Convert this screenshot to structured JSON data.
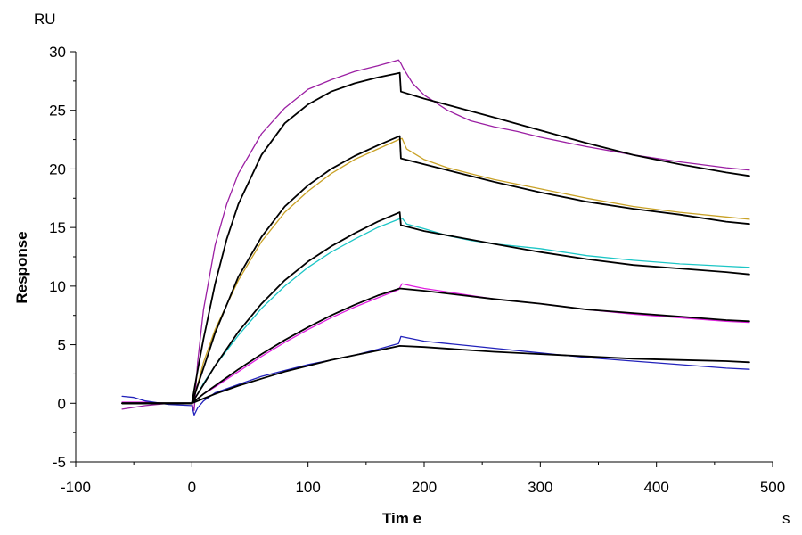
{
  "chart_data": {
    "type": "line",
    "xlabel": "Tim e",
    "ylabel": "Response",
    "x_unit": "s",
    "y_unit": "RU",
    "xlim": [
      -100,
      500
    ],
    "ylim": [
      -5,
      30
    ],
    "x_ticks": [
      -100,
      0,
      100,
      200,
      300,
      400,
      500
    ],
    "y_ticks": [
      -5,
      0,
      5,
      10,
      15,
      20,
      25,
      30
    ],
    "grid": false,
    "legend": "none",
    "series": [
      {
        "color": "#9b1fa3",
        "width": 1.3,
        "points": [
          [
            -60,
            -0.5
          ],
          [
            -40,
            -0.2
          ],
          [
            -20,
            0.0
          ],
          [
            0,
            0.0
          ],
          [
            2,
            -0.6
          ],
          [
            5,
            3.5
          ],
          [
            10,
            8.0
          ],
          [
            20,
            13.5
          ],
          [
            30,
            17.0
          ],
          [
            40,
            19.6
          ],
          [
            60,
            23.0
          ],
          [
            80,
            25.2
          ],
          [
            100,
            26.8
          ],
          [
            120,
            27.6
          ],
          [
            140,
            28.3
          ],
          [
            160,
            28.8
          ],
          [
            178,
            29.3
          ],
          [
            180,
            29.0
          ],
          [
            182,
            28.6
          ],
          [
            190,
            27.3
          ],
          [
            200,
            26.3
          ],
          [
            220,
            25.0
          ],
          [
            240,
            24.1
          ],
          [
            260,
            23.6
          ],
          [
            280,
            23.2
          ],
          [
            300,
            22.7
          ],
          [
            340,
            21.9
          ],
          [
            380,
            21.2
          ],
          [
            420,
            20.6
          ],
          [
            460,
            20.1
          ],
          [
            480,
            19.9
          ]
        ]
      },
      {
        "color": "#c9a227",
        "width": 1.3,
        "points": [
          [
            -60,
            0.0
          ],
          [
            -40,
            0.0
          ],
          [
            -20,
            0.0
          ],
          [
            0,
            0.0
          ],
          [
            5,
            1.6
          ],
          [
            10,
            3.5
          ],
          [
            20,
            6.3
          ],
          [
            40,
            10.5
          ],
          [
            60,
            13.8
          ],
          [
            80,
            16.3
          ],
          [
            100,
            18.1
          ],
          [
            120,
            19.6
          ],
          [
            140,
            20.8
          ],
          [
            160,
            21.7
          ],
          [
            178,
            22.5
          ],
          [
            181,
            22.6
          ],
          [
            185,
            21.7
          ],
          [
            200,
            20.8
          ],
          [
            220,
            20.1
          ],
          [
            240,
            19.6
          ],
          [
            260,
            19.1
          ],
          [
            300,
            18.3
          ],
          [
            340,
            17.5
          ],
          [
            380,
            16.8
          ],
          [
            420,
            16.3
          ],
          [
            460,
            15.9
          ],
          [
            480,
            15.7
          ]
        ]
      },
      {
        "color": "#1cc6c6",
        "width": 1.3,
        "points": [
          [
            -60,
            0.0
          ],
          [
            -20,
            0.0
          ],
          [
            0,
            0.0
          ],
          [
            5,
            0.8
          ],
          [
            10,
            1.7
          ],
          [
            20,
            3.2
          ],
          [
            40,
            5.8
          ],
          [
            60,
            8.1
          ],
          [
            80,
            10.0
          ],
          [
            100,
            11.6
          ],
          [
            120,
            12.9
          ],
          [
            140,
            14.0
          ],
          [
            160,
            15.0
          ],
          [
            178,
            15.7
          ],
          [
            181,
            15.8
          ],
          [
            185,
            15.3
          ],
          [
            200,
            14.9
          ],
          [
            220,
            14.3
          ],
          [
            240,
            13.9
          ],
          [
            260,
            13.6
          ],
          [
            300,
            13.2
          ],
          [
            340,
            12.6
          ],
          [
            380,
            12.2
          ],
          [
            420,
            11.9
          ],
          [
            460,
            11.7
          ],
          [
            480,
            11.6
          ]
        ]
      },
      {
        "color": "#e020e0",
        "width": 1.3,
        "points": [
          [
            -60,
            0.1
          ],
          [
            -40,
            0.1
          ],
          [
            -20,
            0.0
          ],
          [
            0,
            0.0
          ],
          [
            5,
            0.4
          ],
          [
            10,
            0.8
          ],
          [
            20,
            1.4
          ],
          [
            40,
            2.7
          ],
          [
            60,
            4.0
          ],
          [
            80,
            5.2
          ],
          [
            100,
            6.3
          ],
          [
            120,
            7.3
          ],
          [
            140,
            8.2
          ],
          [
            160,
            9.0
          ],
          [
            178,
            9.7
          ],
          [
            181,
            10.2
          ],
          [
            190,
            10.0
          ],
          [
            200,
            9.8
          ],
          [
            220,
            9.5
          ],
          [
            240,
            9.2
          ],
          [
            260,
            8.9
          ],
          [
            300,
            8.5
          ],
          [
            340,
            8.0
          ],
          [
            380,
            7.6
          ],
          [
            420,
            7.3
          ],
          [
            460,
            7.0
          ],
          [
            480,
            6.9
          ]
        ]
      },
      {
        "color": "#2222bb",
        "width": 1.3,
        "points": [
          [
            -60,
            0.6
          ],
          [
            -50,
            0.5
          ],
          [
            -40,
            0.2
          ],
          [
            -20,
            -0.1
          ],
          [
            0,
            -0.2
          ],
          [
            2,
            -1.0
          ],
          [
            5,
            -0.4
          ],
          [
            10,
            0.2
          ],
          [
            20,
            0.9
          ],
          [
            40,
            1.6
          ],
          [
            60,
            2.3
          ],
          [
            80,
            2.8
          ],
          [
            100,
            3.3
          ],
          [
            120,
            3.7
          ],
          [
            140,
            4.1
          ],
          [
            160,
            4.6
          ],
          [
            178,
            5.1
          ],
          [
            180,
            5.7
          ],
          [
            190,
            5.5
          ],
          [
            200,
            5.3
          ],
          [
            220,
            5.1
          ],
          [
            240,
            4.9
          ],
          [
            260,
            4.7
          ],
          [
            300,
            4.3
          ],
          [
            340,
            3.9
          ],
          [
            380,
            3.6
          ],
          [
            420,
            3.3
          ],
          [
            460,
            3.0
          ],
          [
            480,
            2.9
          ]
        ]
      },
      {
        "color": "#000000",
        "width": 1.8,
        "points": [
          [
            -60,
            0.0
          ],
          [
            0,
            0.0
          ],
          [
            5,
            2.8
          ],
          [
            10,
            5.5
          ],
          [
            20,
            10.2
          ],
          [
            30,
            14.0
          ],
          [
            40,
            17.0
          ],
          [
            60,
            21.2
          ],
          [
            80,
            23.9
          ],
          [
            100,
            25.5
          ],
          [
            120,
            26.6
          ],
          [
            140,
            27.3
          ],
          [
            160,
            27.8
          ],
          [
            179,
            28.2
          ],
          [
            180,
            26.6
          ],
          [
            200,
            26.0
          ],
          [
            260,
            24.4
          ],
          [
            300,
            23.3
          ],
          [
            340,
            22.2
          ],
          [
            380,
            21.2
          ],
          [
            420,
            20.4
          ],
          [
            460,
            19.7
          ],
          [
            480,
            19.4
          ]
        ]
      },
      {
        "color": "#000000",
        "width": 1.8,
        "points": [
          [
            -60,
            0.0
          ],
          [
            0,
            0.0
          ],
          [
            5,
            1.5
          ],
          [
            10,
            3.0
          ],
          [
            20,
            6.0
          ],
          [
            40,
            10.8
          ],
          [
            60,
            14.2
          ],
          [
            80,
            16.8
          ],
          [
            100,
            18.6
          ],
          [
            120,
            20.0
          ],
          [
            140,
            21.1
          ],
          [
            160,
            22.0
          ],
          [
            179,
            22.8
          ],
          [
            180,
            20.9
          ],
          [
            200,
            20.4
          ],
          [
            260,
            18.9
          ],
          [
            300,
            18.0
          ],
          [
            340,
            17.2
          ],
          [
            380,
            16.6
          ],
          [
            420,
            16.1
          ],
          [
            460,
            15.5
          ],
          [
            480,
            15.3
          ]
        ]
      },
      {
        "color": "#000000",
        "width": 1.8,
        "points": [
          [
            -60,
            0.0
          ],
          [
            0,
            0.0
          ],
          [
            5,
            0.8
          ],
          [
            10,
            1.6
          ],
          [
            20,
            3.2
          ],
          [
            40,
            6.1
          ],
          [
            60,
            8.5
          ],
          [
            80,
            10.5
          ],
          [
            100,
            12.1
          ],
          [
            120,
            13.4
          ],
          [
            140,
            14.5
          ],
          [
            160,
            15.5
          ],
          [
            179,
            16.3
          ],
          [
            180,
            15.2
          ],
          [
            200,
            14.7
          ],
          [
            260,
            13.6
          ],
          [
            300,
            12.9
          ],
          [
            340,
            12.3
          ],
          [
            380,
            11.8
          ],
          [
            420,
            11.5
          ],
          [
            460,
            11.2
          ],
          [
            480,
            11.0
          ]
        ]
      },
      {
        "color": "#000000",
        "width": 1.8,
        "points": [
          [
            -60,
            0.0
          ],
          [
            0,
            0.0
          ],
          [
            10,
            0.8
          ],
          [
            20,
            1.5
          ],
          [
            40,
            2.9
          ],
          [
            60,
            4.2
          ],
          [
            80,
            5.4
          ],
          [
            100,
            6.5
          ],
          [
            120,
            7.5
          ],
          [
            140,
            8.4
          ],
          [
            160,
            9.2
          ],
          [
            179,
            9.8
          ],
          [
            200,
            9.6
          ],
          [
            260,
            8.9
          ],
          [
            300,
            8.5
          ],
          [
            340,
            8.0
          ],
          [
            380,
            7.7
          ],
          [
            420,
            7.4
          ],
          [
            460,
            7.1
          ],
          [
            480,
            7.0
          ]
        ]
      },
      {
        "color": "#000000",
        "width": 1.8,
        "points": [
          [
            -60,
            0.0
          ],
          [
            0,
            0.0
          ],
          [
            10,
            0.4
          ],
          [
            20,
            0.8
          ],
          [
            40,
            1.5
          ],
          [
            60,
            2.1
          ],
          [
            80,
            2.7
          ],
          [
            100,
            3.2
          ],
          [
            120,
            3.7
          ],
          [
            140,
            4.1
          ],
          [
            160,
            4.5
          ],
          [
            179,
            4.9
          ],
          [
            200,
            4.8
          ],
          [
            260,
            4.4
          ],
          [
            300,
            4.2
          ],
          [
            340,
            4.0
          ],
          [
            380,
            3.8
          ],
          [
            420,
            3.7
          ],
          [
            460,
            3.6
          ],
          [
            480,
            3.5
          ]
        ]
      }
    ]
  }
}
